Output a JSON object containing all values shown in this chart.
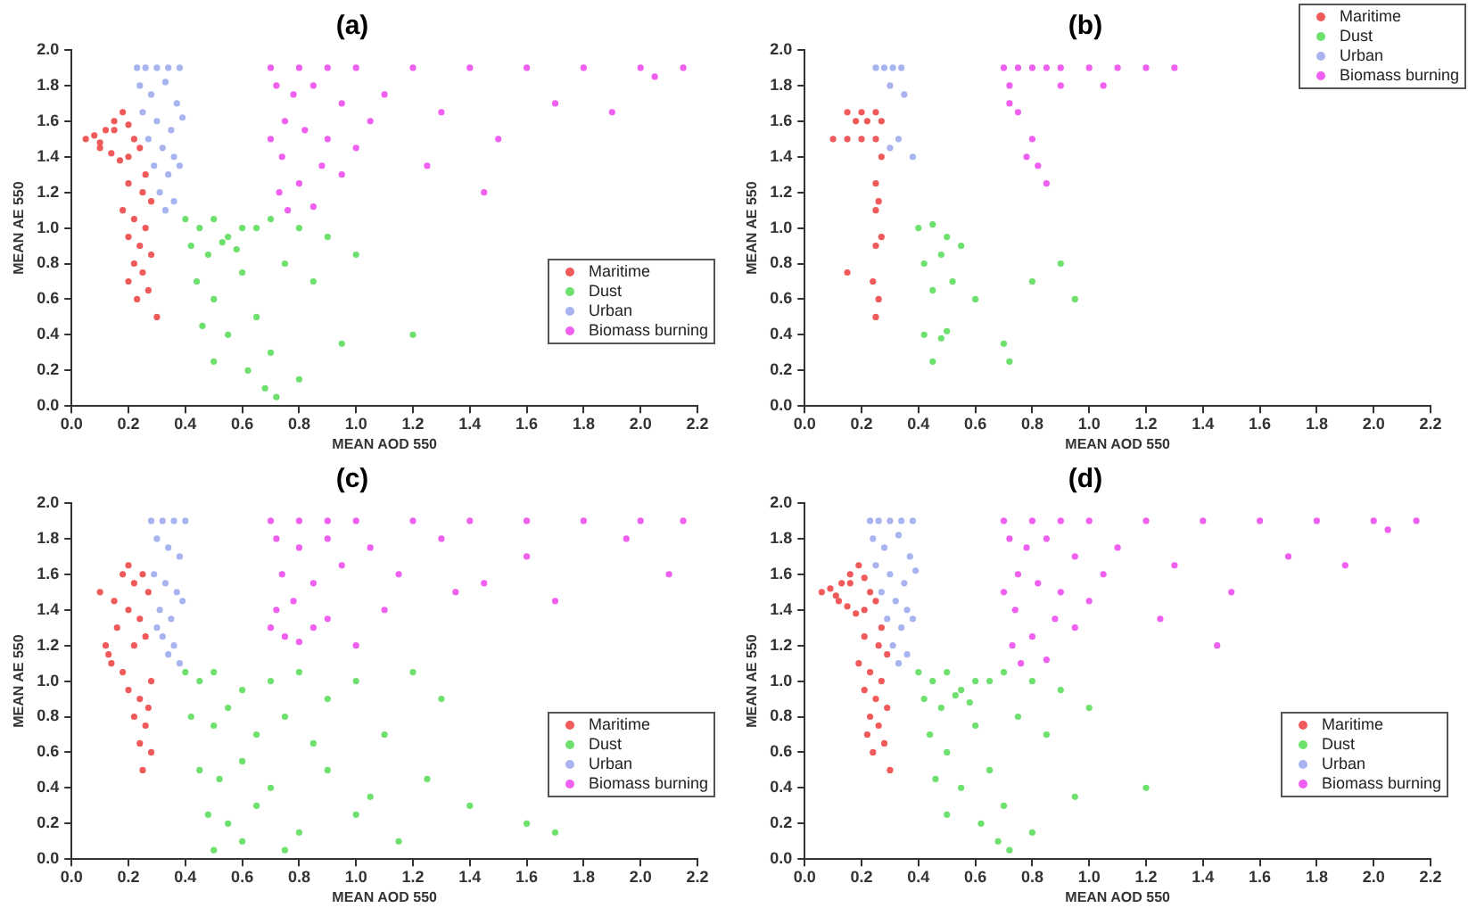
{
  "chart_data": [
    {
      "type": "scatter",
      "title": "(a)",
      "xlabel": "MEAN AOD 550",
      "ylabel": "MEAN AE 550",
      "xlim": [
        0,
        2.2
      ],
      "ylim": [
        0,
        2.0
      ],
      "xticks": [
        {
          "value": 0,
          "label": "0.0"
        },
        0.2,
        0.4,
        0.6,
        0.8,
        {
          "value": 1,
          "label": "1.0"
        },
        1.2,
        1.4,
        1.6,
        1.8,
        {
          "value": 2,
          "label": "2.0"
        },
        2.2
      ],
      "yticks": [
        {
          "value": 0,
          "label": "0.0"
        },
        0.2,
        0.4,
        0.6,
        0.8,
        {
          "value": 1,
          "label": "1.0"
        },
        1.2,
        1.4,
        1.6,
        1.8,
        {
          "value": 2,
          "label": "2.0"
        }
      ],
      "grid": false,
      "legend": "right",
      "marker": "circle",
      "series": [
        {
          "name": "Maritime",
          "color": "#f05a5a",
          "x": [
            0.05,
            0.08,
            0.1,
            0.12,
            0.15,
            0.18,
            0.2,
            0.22,
            0.1,
            0.14,
            0.17,
            0.2,
            0.24,
            0.26,
            0.15,
            0.2,
            0.25,
            0.28,
            0.18,
            0.22,
            0.26,
            0.2,
            0.24,
            0.28,
            0.22,
            0.25,
            0.2,
            0.27,
            0.23,
            0.3
          ],
          "values": [
            1.5,
            1.52,
            1.48,
            1.55,
            1.6,
            1.65,
            1.58,
            1.5,
            1.45,
            1.42,
            1.38,
            1.4,
            1.45,
            1.3,
            1.55,
            1.25,
            1.2,
            1.15,
            1.1,
            1.05,
            1.0,
            0.95,
            0.9,
            0.85,
            0.8,
            0.75,
            0.7,
            0.65,
            0.6,
            0.5
          ]
        },
        {
          "name": "Dust",
          "color": "#6ee06e",
          "x": [
            0.4,
            0.45,
            0.5,
            0.55,
            0.6,
            0.42,
            0.48,
            0.53,
            0.58,
            0.65,
            0.7,
            0.8,
            0.9,
            0.44,
            0.5,
            0.6,
            0.75,
            0.85,
            1.0,
            0.46,
            0.55,
            0.65,
            0.7,
            0.62,
            0.68,
            0.72,
            0.5,
            0.95,
            1.2,
            0.8
          ],
          "values": [
            1.05,
            1.0,
            1.05,
            0.95,
            1.0,
            0.9,
            0.85,
            0.92,
            0.88,
            1.0,
            1.05,
            1.0,
            0.95,
            0.7,
            0.6,
            0.75,
            0.8,
            0.7,
            0.85,
            0.45,
            0.4,
            0.5,
            0.3,
            0.2,
            0.1,
            0.05,
            0.25,
            0.35,
            0.4,
            0.15
          ]
        },
        {
          "name": "Urban",
          "color": "#a8b4f0",
          "x": [
            0.23,
            0.26,
            0.3,
            0.34,
            0.38,
            0.24,
            0.28,
            0.33,
            0.37,
            0.25,
            0.3,
            0.35,
            0.39,
            0.27,
            0.32,
            0.36,
            0.29,
            0.34,
            0.38,
            0.31,
            0.36,
            0.33
          ],
          "values": [
            1.9,
            1.9,
            1.9,
            1.9,
            1.9,
            1.8,
            1.75,
            1.82,
            1.7,
            1.65,
            1.6,
            1.55,
            1.62,
            1.5,
            1.45,
            1.4,
            1.35,
            1.3,
            1.35,
            1.2,
            1.15,
            1.1
          ]
        },
        {
          "name": "Biomass burning",
          "color": "#f060f0",
          "x": [
            0.7,
            0.8,
            0.9,
            1.0,
            1.2,
            1.4,
            1.6,
            1.8,
            2.0,
            2.15,
            0.72,
            0.78,
            0.85,
            0.95,
            1.1,
            0.75,
            0.82,
            0.9,
            1.05,
            1.3,
            0.74,
            0.88,
            1.0,
            1.5,
            0.73,
            0.8,
            0.95,
            1.25,
            0.76,
            0.85,
            1.7,
            2.05,
            1.9,
            1.45,
            0.7
          ],
          "values": [
            1.9,
            1.9,
            1.9,
            1.9,
            1.9,
            1.9,
            1.9,
            1.9,
            1.9,
            1.9,
            1.8,
            1.75,
            1.8,
            1.7,
            1.75,
            1.6,
            1.55,
            1.5,
            1.6,
            1.65,
            1.4,
            1.35,
            1.45,
            1.5,
            1.2,
            1.25,
            1.3,
            1.35,
            1.1,
            1.12,
            1.7,
            1.85,
            1.65,
            1.2,
            1.5
          ]
        }
      ]
    },
    {
      "type": "scatter",
      "title": "(b)",
      "xlabel": "MEAN AOD 550",
      "ylabel": "MEAN AE 550",
      "xlim": [
        0,
        2.2
      ],
      "ylim": [
        0,
        2.0
      ],
      "xticks": [
        {
          "value": 0,
          "label": "0.0"
        },
        0.2,
        0.4,
        0.6,
        0.8,
        {
          "value": 1,
          "label": "1.0"
        },
        1.2,
        1.4,
        1.6,
        1.8,
        {
          "value": 2,
          "label": "2.0"
        },
        2.2
      ],
      "yticks": [
        {
          "value": 0,
          "label": "0.0"
        },
        0.2,
        0.4,
        0.6,
        0.8,
        {
          "value": 1,
          "label": "1.0"
        },
        1.2,
        1.4,
        1.6,
        1.8,
        {
          "value": 2,
          "label": "2.0"
        }
      ],
      "grid": false,
      "legend": "top right",
      "marker": "circle",
      "series": [
        {
          "name": "Maritime",
          "color": "#f05a5a",
          "x": [
            0.15,
            0.2,
            0.25,
            0.18,
            0.22,
            0.27,
            0.1,
            0.15,
            0.2,
            0.25,
            0.27,
            0.25,
            0.26,
            0.25,
            0.27,
            0.25,
            0.15,
            0.24,
            0.26,
            0.25
          ],
          "values": [
            1.65,
            1.65,
            1.65,
            1.6,
            1.6,
            1.6,
            1.5,
            1.5,
            1.5,
            1.5,
            1.4,
            1.25,
            1.15,
            1.1,
            0.95,
            0.9,
            0.75,
            0.7,
            0.6,
            0.5
          ]
        },
        {
          "name": "Dust",
          "color": "#6ee06e",
          "x": [
            0.4,
            0.45,
            0.5,
            0.55,
            0.42,
            0.48,
            0.52,
            0.45,
            0.5,
            0.42,
            0.48,
            0.6,
            0.45,
            0.8,
            0.9,
            0.95,
            0.7,
            0.72
          ],
          "values": [
            1.0,
            1.02,
            0.95,
            0.9,
            0.8,
            0.85,
            0.7,
            0.65,
            0.42,
            0.4,
            0.38,
            0.6,
            0.25,
            0.7,
            0.8,
            0.6,
            0.35,
            0.25
          ]
        },
        {
          "name": "Urban",
          "color": "#a8b4f0",
          "x": [
            0.25,
            0.28,
            0.31,
            0.34,
            0.3,
            0.35,
            0.3,
            0.38,
            0.33
          ],
          "values": [
            1.9,
            1.9,
            1.9,
            1.9,
            1.8,
            1.75,
            1.45,
            1.4,
            1.5
          ]
        },
        {
          "name": "Biomass burning",
          "color": "#f060f0",
          "x": [
            0.7,
            0.75,
            0.8,
            0.85,
            0.9,
            1.0,
            1.1,
            1.2,
            1.3,
            0.72,
            0.9,
            1.05,
            0.72,
            0.75,
            0.8,
            0.82,
            0.78,
            0.85
          ],
          "values": [
            1.9,
            1.9,
            1.9,
            1.9,
            1.9,
            1.9,
            1.9,
            1.9,
            1.9,
            1.8,
            1.8,
            1.8,
            1.7,
            1.65,
            1.5,
            1.35,
            1.4,
            1.25
          ]
        }
      ]
    },
    {
      "type": "scatter",
      "title": "(c)",
      "xlabel": "MEAN AOD 550",
      "ylabel": "MEAN AE 550",
      "xlim": [
        0,
        2.2
      ],
      "ylim": [
        0,
        2.0
      ],
      "xticks": [
        {
          "value": 0,
          "label": "0.0"
        },
        0.2,
        0.4,
        0.6,
        0.8,
        {
          "value": 1,
          "label": "1.0"
        },
        1.2,
        1.4,
        1.6,
        1.8,
        {
          "value": 2,
          "label": "2.0"
        },
        2.2
      ],
      "yticks": [
        {
          "value": 0,
          "label": "0.0"
        },
        0.2,
        0.4,
        0.6,
        0.8,
        {
          "value": 1,
          "label": "1.0"
        },
        1.2,
        1.4,
        1.6,
        1.8,
        {
          "value": 2,
          "label": "2.0"
        }
      ],
      "grid": false,
      "legend": "right",
      "marker": "circle",
      "series": [
        {
          "name": "Maritime",
          "color": "#f05a5a",
          "x": [
            0.1,
            0.12,
            0.15,
            0.18,
            0.2,
            0.22,
            0.25,
            0.13,
            0.16,
            0.2,
            0.24,
            0.27,
            0.14,
            0.18,
            0.22,
            0.26,
            0.28,
            0.2,
            0.24,
            0.27,
            0.22,
            0.26,
            0.24,
            0.28,
            0.25
          ],
          "values": [
            1.5,
            1.2,
            1.45,
            1.6,
            1.65,
            1.55,
            1.6,
            1.15,
            1.3,
            1.4,
            1.35,
            1.5,
            1.1,
            1.05,
            1.2,
            1.25,
            1.0,
            0.95,
            0.9,
            0.85,
            0.8,
            0.75,
            0.65,
            0.6,
            0.5
          ]
        },
        {
          "name": "Dust",
          "color": "#6ee06e",
          "x": [
            0.4,
            0.45,
            0.5,
            0.6,
            0.7,
            0.8,
            0.9,
            1.0,
            1.2,
            0.42,
            0.5,
            0.55,
            0.65,
            0.75,
            0.85,
            1.1,
            1.3,
            0.45,
            0.52,
            0.6,
            0.7,
            0.9,
            1.05,
            1.25,
            0.48,
            0.55,
            0.65,
            0.8,
            1.0,
            1.4,
            1.6,
            0.5,
            0.6,
            0.75,
            1.15,
            1.7
          ],
          "values": [
            1.05,
            1.0,
            1.05,
            0.95,
            1.0,
            1.05,
            0.9,
            1.0,
            1.05,
            0.8,
            0.75,
            0.85,
            0.7,
            0.8,
            0.65,
            0.7,
            0.9,
            0.5,
            0.45,
            0.55,
            0.4,
            0.5,
            0.35,
            0.45,
            0.25,
            0.2,
            0.3,
            0.15,
            0.25,
            0.3,
            0.2,
            0.05,
            0.1,
            0.05,
            0.1,
            0.15
          ]
        },
        {
          "name": "Urban",
          "color": "#a8b4f0",
          "x": [
            0.28,
            0.32,
            0.36,
            0.4,
            0.3,
            0.34,
            0.38,
            0.29,
            0.33,
            0.37,
            0.31,
            0.35,
            0.39,
            0.32,
            0.36,
            0.3,
            0.38,
            0.34
          ],
          "values": [
            1.9,
            1.9,
            1.9,
            1.9,
            1.8,
            1.75,
            1.7,
            1.6,
            1.55,
            1.5,
            1.4,
            1.35,
            1.45,
            1.25,
            1.2,
            1.3,
            1.1,
            1.15
          ]
        },
        {
          "name": "Biomass burning",
          "color": "#f060f0",
          "x": [
            0.7,
            0.8,
            0.9,
            1.0,
            1.2,
            1.4,
            1.6,
            1.8,
            2.0,
            2.15,
            0.72,
            0.8,
            0.9,
            1.05,
            1.3,
            1.6,
            1.95,
            0.74,
            0.85,
            0.95,
            1.15,
            1.45,
            0.72,
            0.78,
            0.9,
            1.1,
            1.35,
            0.75,
            0.85,
            1.0,
            0.7,
            0.8,
            1.7,
            2.1
          ],
          "values": [
            1.9,
            1.9,
            1.9,
            1.9,
            1.9,
            1.9,
            1.9,
            1.9,
            1.9,
            1.9,
            1.8,
            1.75,
            1.8,
            1.75,
            1.8,
            1.7,
            1.8,
            1.6,
            1.55,
            1.65,
            1.6,
            1.55,
            1.4,
            1.45,
            1.35,
            1.4,
            1.5,
            1.25,
            1.3,
            1.2,
            1.3,
            1.22,
            1.45,
            1.6
          ]
        }
      ]
    },
    {
      "type": "scatter",
      "title": "(d)",
      "xlabel": "MEAN AOD 550",
      "ylabel": "MEAN AE 550",
      "xlim": [
        0,
        2.2
      ],
      "ylim": [
        0,
        2.0
      ],
      "xticks": [
        {
          "value": 0,
          "label": "0.0"
        },
        0.2,
        0.4,
        0.6,
        0.8,
        {
          "value": 1,
          "label": "1.0"
        },
        1.2,
        1.4,
        1.6,
        1.8,
        {
          "value": 2,
          "label": "2.0"
        },
        2.2
      ],
      "yticks": [
        {
          "value": 0,
          "label": "0.0"
        },
        0.2,
        0.4,
        0.6,
        0.8,
        {
          "value": 1,
          "label": "1.0"
        },
        1.2,
        1.4,
        1.6,
        1.8,
        {
          "value": 2,
          "label": "2.0"
        }
      ],
      "grid": false,
      "legend": "right",
      "marker": "circle",
      "series": [
        {
          "name": "Maritime",
          "color": "#f05a5a",
          "x": [
            0.06,
            0.09,
            0.11,
            0.13,
            0.16,
            0.19,
            0.21,
            0.23,
            0.12,
            0.15,
            0.18,
            0.21,
            0.25,
            0.27,
            0.16,
            0.21,
            0.26,
            0.29,
            0.19,
            0.23,
            0.27,
            0.21,
            0.25,
            0.29,
            0.23,
            0.26,
            0.22,
            0.28,
            0.24,
            0.3
          ],
          "values": [
            1.5,
            1.52,
            1.48,
            1.55,
            1.6,
            1.65,
            1.58,
            1.5,
            1.45,
            1.42,
            1.38,
            1.4,
            1.45,
            1.3,
            1.55,
            1.25,
            1.2,
            1.15,
            1.1,
            1.05,
            1.0,
            0.95,
            0.9,
            0.85,
            0.8,
            0.75,
            0.7,
            0.65,
            0.6,
            0.5
          ]
        },
        {
          "name": "Dust",
          "color": "#6ee06e",
          "x": [
            0.4,
            0.45,
            0.5,
            0.55,
            0.6,
            0.42,
            0.48,
            0.53,
            0.58,
            0.65,
            0.7,
            0.8,
            0.9,
            0.44,
            0.5,
            0.6,
            0.75,
            0.85,
            1.0,
            0.46,
            0.55,
            0.65,
            0.7,
            0.62,
            0.68,
            0.72,
            0.5,
            0.95,
            1.2,
            0.8
          ],
          "values": [
            1.05,
            1.0,
            1.05,
            0.95,
            1.0,
            0.9,
            0.85,
            0.92,
            0.88,
            1.0,
            1.05,
            1.0,
            0.95,
            0.7,
            0.6,
            0.75,
            0.8,
            0.7,
            0.85,
            0.45,
            0.4,
            0.5,
            0.3,
            0.2,
            0.1,
            0.05,
            0.25,
            0.35,
            0.4,
            0.15
          ]
        },
        {
          "name": "Urban",
          "color": "#a8b4f0",
          "x": [
            0.23,
            0.26,
            0.3,
            0.34,
            0.38,
            0.24,
            0.28,
            0.33,
            0.37,
            0.25,
            0.3,
            0.35,
            0.39,
            0.27,
            0.32,
            0.36,
            0.29,
            0.34,
            0.38,
            0.31,
            0.36,
            0.33
          ],
          "values": [
            1.9,
            1.9,
            1.9,
            1.9,
            1.9,
            1.8,
            1.75,
            1.82,
            1.7,
            1.65,
            1.6,
            1.55,
            1.62,
            1.5,
            1.45,
            1.4,
            1.35,
            1.3,
            1.35,
            1.2,
            1.15,
            1.1
          ]
        },
        {
          "name": "Biomass burning",
          "color": "#f060f0",
          "x": [
            0.7,
            0.8,
            0.9,
            1.0,
            1.2,
            1.4,
            1.6,
            1.8,
            2.0,
            2.15,
            0.72,
            0.78,
            0.85,
            0.95,
            1.1,
            0.75,
            0.82,
            0.9,
            1.05,
            1.3,
            0.74,
            0.88,
            1.0,
            1.5,
            0.73,
            0.8,
            0.95,
            1.25,
            0.76,
            0.85,
            1.7,
            2.05,
            1.9,
            1.45,
            0.7
          ],
          "values": [
            1.9,
            1.9,
            1.9,
            1.9,
            1.9,
            1.9,
            1.9,
            1.9,
            1.9,
            1.9,
            1.8,
            1.75,
            1.8,
            1.7,
            1.75,
            1.6,
            1.55,
            1.5,
            1.6,
            1.65,
            1.4,
            1.35,
            1.45,
            1.5,
            1.2,
            1.25,
            1.3,
            1.35,
            1.1,
            1.12,
            1.7,
            1.85,
            1.65,
            1.2,
            1.5
          ]
        }
      ]
    }
  ]
}
